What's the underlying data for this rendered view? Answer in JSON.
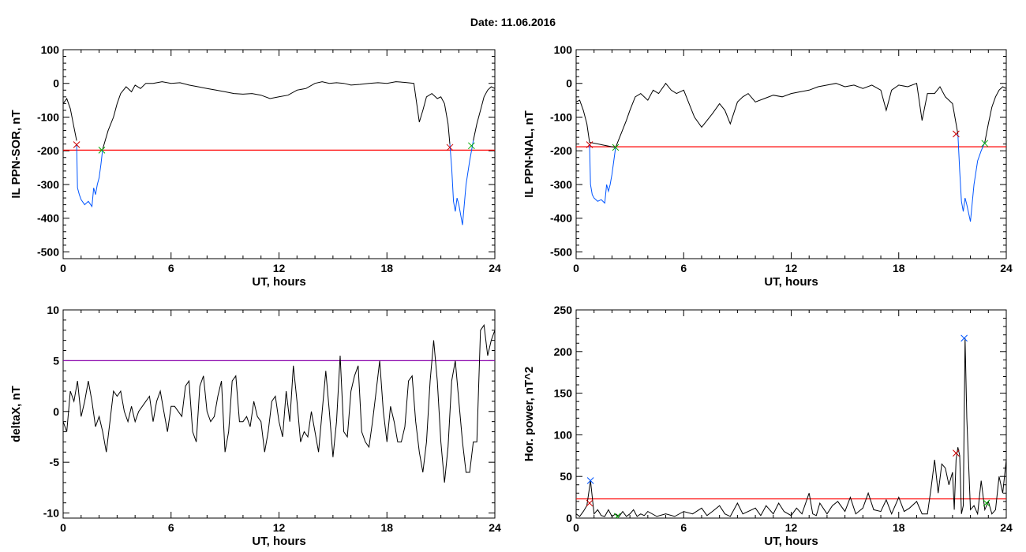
{
  "figure": {
    "date_label": "Date:  11.06.2016"
  },
  "chart_data": [
    {
      "type": "line",
      "id": "sor",
      "ylabel": "IL PPN-SOR, nT",
      "xlabel": "UT, hours",
      "xlim": [
        0,
        24
      ],
      "ylim": [
        -520,
        100
      ],
      "xticks": [
        0,
        6,
        12,
        18,
        24
      ],
      "yticks": [
        -500,
        -400,
        -300,
        -200,
        -100,
        0,
        100
      ],
      "threshold": -198,
      "threshold_color": "#ff0000",
      "series": [
        {
          "color": "#000000",
          "x": [
            0,
            0.2,
            0.4,
            0.6,
            0.75,
            1.0,
            1.3,
            1.6,
            1.9,
            2.2,
            2.5,
            2.8,
            3.0,
            3.2,
            3.5,
            3.8,
            4.0,
            4.3,
            4.6,
            5.0,
            5.5,
            6.0,
            6.5,
            7.0,
            7.5,
            8.0,
            8.5,
            9.0,
            9.5,
            10.0,
            10.5,
            11.0,
            11.5,
            12.0,
            12.5,
            13.0,
            13.5,
            14.0,
            14.4,
            14.8,
            15.2,
            15.6,
            16.0,
            16.5,
            17.0,
            17.5,
            18.0,
            18.5,
            19.0,
            19.5,
            19.8,
            20.0,
            20.2,
            20.5,
            20.8,
            21.0,
            21.2,
            21.4,
            21.5
          ],
          "y": [
            -60,
            -45,
            -75,
            -130,
            -170,
            null,
            null,
            null,
            null,
            -195,
            -140,
            -100,
            -60,
            -30,
            -10,
            -25,
            -5,
            -15,
            0,
            0,
            5,
            0,
            2,
            -5,
            -10,
            -15,
            -20,
            -25,
            -30,
            -32,
            -30,
            -35,
            -45,
            -40,
            -35,
            -20,
            -15,
            0,
            5,
            0,
            2,
            0,
            -5,
            -3,
            0,
            2,
            0,
            5,
            3,
            0,
            -115,
            -80,
            -40,
            -30,
            -45,
            -40,
            -60,
            -120,
            -180
          ]
        },
        {
          "color": "#000000",
          "x": [
            22.8,
            23.0,
            23.2,
            23.4,
            23.6,
            23.8,
            24.0
          ],
          "y": [
            -170,
            -120,
            -80,
            -40,
            -20,
            -10,
            -15
          ]
        },
        {
          "color": "#0055ff",
          "x": [
            0.75,
            0.8,
            0.9,
            1.0,
            1.2,
            1.4,
            1.6,
            1.7,
            1.8,
            1.9,
            2.0,
            2.1,
            2.2
          ],
          "y": [
            -180,
            -310,
            -330,
            -345,
            -360,
            -350,
            -365,
            -310,
            -330,
            -300,
            -280,
            -240,
            -195
          ]
        },
        {
          "color": "#0055ff",
          "x": [
            21.5,
            21.6,
            21.7,
            21.8,
            21.9,
            22.0,
            22.2,
            22.4,
            22.6,
            22.8
          ],
          "y": [
            -180,
            -250,
            -350,
            -380,
            -340,
            -360,
            -420,
            -300,
            -230,
            -170
          ]
        }
      ],
      "markers": [
        {
          "x": 0.75,
          "y": -182,
          "color": "#cc0000"
        },
        {
          "x": 2.15,
          "y": -198,
          "color": "#00aa00"
        },
        {
          "x": 21.5,
          "y": -190,
          "color": "#cc0000"
        },
        {
          "x": 22.7,
          "y": -185,
          "color": "#00aa00"
        }
      ]
    },
    {
      "type": "line",
      "id": "nal",
      "ylabel": "IL PPN-NAL, nT",
      "xlabel": "UT, hours",
      "xlim": [
        0,
        24
      ],
      "ylim": [
        -520,
        100
      ],
      "xticks": [
        0,
        6,
        12,
        18,
        24
      ],
      "yticks": [
        -500,
        -400,
        -300,
        -200,
        -100,
        0,
        100
      ],
      "threshold": -188,
      "threshold_color": "#ff0000",
      "series": [
        {
          "color": "#000000",
          "x": [
            0,
            0.2,
            0.4,
            0.6,
            0.75,
            2.2,
            2.5,
            2.8,
            3.0,
            3.3,
            3.6,
            4.0,
            4.3,
            4.6,
            5.0,
            5.3,
            5.6,
            6.0,
            6.3,
            6.6,
            7.0,
            7.3,
            7.6,
            8.0,
            8.3,
            8.6,
            9.0,
            9.3,
            9.6,
            10.0,
            10.5,
            11.0,
            11.5,
            12.0,
            12.5,
            13.0,
            13.5,
            14.0,
            14.5,
            15.0,
            15.5,
            16.0,
            16.5,
            17.0,
            17.3,
            17.6,
            18.0,
            18.5,
            19.0,
            19.3,
            19.6,
            20.0,
            20.3,
            20.6,
            21.0,
            21.3
          ],
          "y": [
            -55,
            -50,
            -80,
            -120,
            -175,
            -190,
            -150,
            -110,
            -80,
            -40,
            -30,
            -50,
            -20,
            -30,
            0,
            -20,
            -30,
            -20,
            -60,
            -100,
            -130,
            -110,
            -90,
            -60,
            -80,
            -120,
            -55,
            -40,
            -30,
            -55,
            -45,
            -35,
            -40,
            -30,
            -25,
            -20,
            -10,
            -5,
            0,
            -10,
            -5,
            -15,
            -5,
            -20,
            -80,
            -20,
            -5,
            -10,
            0,
            -110,
            -30,
            -30,
            -10,
            -40,
            -60,
            -150
          ]
        },
        {
          "color": "#000000",
          "x": [
            22.8,
            23.0,
            23.2,
            23.4,
            23.6,
            23.8,
            24.0
          ],
          "y": [
            -175,
            -120,
            -70,
            -40,
            -20,
            -10,
            -15
          ]
        },
        {
          "color": "#0055ff",
          "x": [
            0.75,
            0.8,
            0.9,
            1.0,
            1.2,
            1.4,
            1.6,
            1.7,
            1.8,
            1.9,
            2.0,
            2.1,
            2.2
          ],
          "y": [
            -180,
            -300,
            -330,
            -340,
            -350,
            -345,
            -355,
            -300,
            -320,
            -300,
            -270,
            -230,
            -190
          ]
        },
        {
          "color": "#0055ff",
          "x": [
            21.3,
            21.4,
            21.5,
            21.6,
            21.7,
            21.8,
            22.0,
            22.2,
            22.4,
            22.6,
            22.8
          ],
          "y": [
            -150,
            -260,
            -350,
            -380,
            -340,
            -360,
            -410,
            -300,
            -230,
            -200,
            -175
          ]
        }
      ],
      "markers": [
        {
          "x": 0.75,
          "y": -182,
          "color": "#cc0000"
        },
        {
          "x": 2.2,
          "y": -190,
          "color": "#00aa00"
        },
        {
          "x": 21.2,
          "y": -150,
          "color": "#cc0000"
        },
        {
          "x": 22.8,
          "y": -178,
          "color": "#00aa00"
        }
      ]
    },
    {
      "type": "line",
      "id": "deltax",
      "ylabel": "deltaX, nT",
      "xlabel": "UT, hours",
      "xlim": [
        0,
        24
      ],
      "ylim": [
        -10.5,
        10
      ],
      "xticks": [
        0,
        6,
        12,
        18,
        24
      ],
      "yticks": [
        -10,
        -5,
        0,
        5,
        10
      ],
      "threshold": 5,
      "threshold_color": "#8800aa",
      "series": [
        {
          "color": "#000000",
          "x": [
            0,
            0.2,
            0.4,
            0.6,
            0.8,
            1.0,
            1.2,
            1.4,
            1.6,
            1.8,
            2.0,
            2.2,
            2.4,
            2.6,
            2.8,
            3.0,
            3.2,
            3.4,
            3.6,
            3.8,
            4.0,
            4.2,
            4.4,
            4.6,
            4.8,
            5.0,
            5.2,
            5.4,
            5.6,
            5.8,
            6.0,
            6.2,
            6.4,
            6.6,
            6.8,
            7.0,
            7.2,
            7.4,
            7.6,
            7.8,
            8.0,
            8.2,
            8.4,
            8.6,
            8.8,
            9.0,
            9.2,
            9.4,
            9.6,
            9.8,
            10.0,
            10.2,
            10.4,
            10.6,
            10.8,
            11.0,
            11.2,
            11.4,
            11.6,
            11.8,
            12.0,
            12.2,
            12.4,
            12.6,
            12.8,
            13.0,
            13.2,
            13.4,
            13.6,
            13.8,
            14.0,
            14.2,
            14.4,
            14.6,
            14.8,
            15.0,
            15.2,
            15.4,
            15.6,
            15.8,
            16.0,
            16.2,
            16.4,
            16.6,
            16.8,
            17.0,
            17.2,
            17.4,
            17.6,
            17.8,
            18.0,
            18.2,
            18.4,
            18.6,
            18.8,
            19.0,
            19.2,
            19.4,
            19.6,
            19.8,
            20.0,
            20.2,
            20.4,
            20.6,
            20.8,
            21.0,
            21.2,
            21.4,
            21.6,
            21.8,
            22.0,
            22.2,
            22.4,
            22.6,
            22.8,
            23.0,
            23.2,
            23.4,
            23.6,
            23.8,
            24.0
          ],
          "y": [
            -1,
            -2,
            2,
            1,
            3,
            -0.5,
            1,
            3,
            1,
            -1.5,
            -0.5,
            -2,
            -4,
            -1,
            2,
            1.5,
            2,
            0,
            -1,
            0.5,
            -1,
            0,
            0.5,
            1,
            1.5,
            -1,
            1,
            2,
            0,
            -2,
            0.5,
            0.5,
            0,
            -0.5,
            2.5,
            3,
            -2,
            -3,
            2.5,
            3.5,
            0,
            -1,
            -0.5,
            1.5,
            3,
            -4,
            -2,
            3,
            3.5,
            -1,
            -1,
            -0.5,
            -1.5,
            1,
            -0.5,
            -1,
            -4,
            -2,
            1,
            1.5,
            -1,
            -2.5,
            2,
            -1,
            4.5,
            1,
            -3,
            -2,
            -2.5,
            0,
            -2,
            -4,
            0,
            4,
            0,
            -4.5,
            -1,
            5.5,
            -2,
            -2.5,
            2,
            3.5,
            4.5,
            -2,
            -3,
            -3.5,
            -1,
            2,
            5,
            0,
            -3,
            0.5,
            -1,
            -3,
            -3,
            -1.5,
            3,
            3.5,
            -1,
            -4,
            -6,
            -3,
            3,
            7,
            3,
            -3,
            -7,
            -3.5,
            3,
            5,
            1,
            -3,
            -6,
            -6,
            -3,
            -3,
            8,
            8.5,
            5.5,
            7,
            8
          ]
        }
      ],
      "markers": []
    },
    {
      "type": "line",
      "id": "horpower",
      "ylabel": "Hor. power, nT^2",
      "xlabel": "UT, hours",
      "xlim": [
        0,
        24
      ],
      "ylim": [
        0,
        250
      ],
      "xticks": [
        0,
        6,
        12,
        18,
        24
      ],
      "yticks": [
        0,
        50,
        100,
        150,
        200,
        250
      ],
      "threshold": 23,
      "threshold_color": "#ff0000",
      "series": [
        {
          "color": "#000000",
          "x": [
            0,
            0.2,
            0.4,
            0.6,
            0.8,
            1.0,
            1.2,
            1.4,
            1.6,
            1.8,
            2.0,
            2.2,
            2.4,
            2.6,
            2.8,
            3.0,
            3.2,
            3.4,
            3.6,
            3.8,
            4.0,
            4.5,
            5.0,
            5.5,
            6.0,
            6.5,
            7.0,
            7.3,
            7.6,
            8.0,
            8.3,
            8.6,
            9.0,
            9.3,
            9.6,
            10.0,
            10.3,
            10.6,
            11.0,
            11.3,
            11.6,
            12.0,
            12.3,
            12.6,
            13.0,
            13.2,
            13.4,
            13.6,
            14.0,
            14.3,
            14.6,
            15.0,
            15.3,
            15.6,
            16.0,
            16.3,
            16.6,
            17.0,
            17.3,
            17.6,
            18.0,
            18.3,
            18.6,
            19.0,
            19.3,
            19.6,
            19.8,
            20.0,
            20.2,
            20.4,
            20.6,
            20.8,
            21.0,
            21.1,
            21.2,
            21.3,
            21.4,
            21.5,
            21.6,
            21.7,
            21.8,
            22.0,
            22.2,
            22.4,
            22.6,
            22.8,
            23.0,
            23.2,
            23.4,
            23.6,
            23.8,
            24.0
          ],
          "y": [
            5,
            2,
            8,
            15,
            45,
            5,
            10,
            3,
            2,
            10,
            2,
            5,
            2,
            8,
            2,
            5,
            10,
            2,
            5,
            3,
            8,
            2,
            5,
            2,
            8,
            5,
            12,
            3,
            8,
            15,
            5,
            2,
            18,
            5,
            8,
            12,
            3,
            15,
            5,
            18,
            8,
            3,
            12,
            5,
            30,
            5,
            3,
            18,
            5,
            15,
            20,
            8,
            25,
            5,
            12,
            30,
            10,
            8,
            22,
            5,
            25,
            8,
            12,
            20,
            5,
            5,
            35,
            70,
            30,
            65,
            60,
            40,
            55,
            10,
            70,
            85,
            75,
            5,
            15,
            216,
            120,
            10,
            15,
            5,
            45,
            10,
            20,
            5,
            10,
            50,
            30,
            70
          ]
        }
      ],
      "markers": [
        {
          "x": 0.75,
          "y": 18,
          "color": "#cc0000"
        },
        {
          "x": 0.8,
          "y": 45,
          "color": "#0055ff"
        },
        {
          "x": 2.3,
          "y": 2,
          "color": "#00aa00"
        },
        {
          "x": 21.2,
          "y": 78,
          "color": "#cc0000"
        },
        {
          "x": 21.65,
          "y": 216,
          "color": "#0055ff"
        },
        {
          "x": 22.9,
          "y": 18,
          "color": "#00aa00"
        }
      ]
    }
  ]
}
